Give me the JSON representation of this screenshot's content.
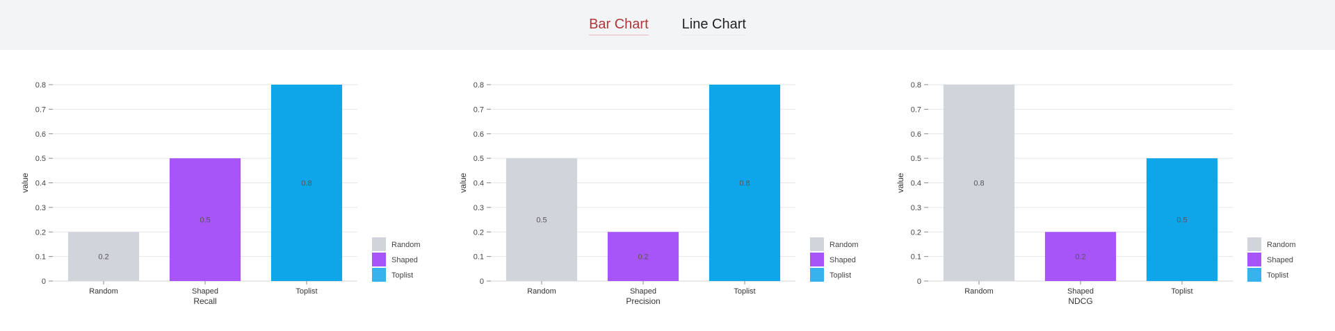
{
  "tabs": [
    {
      "label": "Bar Chart",
      "active": true
    },
    {
      "label": "Line Chart",
      "active": false
    }
  ],
  "chart_data": [
    {
      "type": "bar",
      "xlabel": "Recall",
      "ylabel": "value",
      "categories": [
        "Random",
        "Shaped",
        "Toplist"
      ],
      "values": [
        0.2,
        0.5,
        0.8
      ],
      "colors": [
        "#d1d5db",
        "#a855f7",
        "#0ea5e9"
      ],
      "ylim": [
        0,
        0.8
      ],
      "yticks": [
        "0",
        "0.1",
        "0.2",
        "0.3",
        "0.4",
        "0.5",
        "0.6",
        "0.7",
        "0.8"
      ],
      "grid": true,
      "legend": {
        "placement": "right-bottom",
        "entries": [
          "Random",
          "Shaped",
          "Toplist"
        ],
        "colors": [
          "#d1d5db",
          "#a855f7",
          "#38b2ec"
        ]
      }
    },
    {
      "type": "bar",
      "xlabel": "Precision",
      "ylabel": "value",
      "categories": [
        "Random",
        "Shaped",
        "Toplist"
      ],
      "values": [
        0.5,
        0.2,
        0.8
      ],
      "colors": [
        "#d1d5db",
        "#a855f7",
        "#0ea5e9"
      ],
      "ylim": [
        0,
        0.8
      ],
      "yticks": [
        "0",
        "0.1",
        "0.2",
        "0.3",
        "0.4",
        "0.5",
        "0.6",
        "0.7",
        "0.8"
      ],
      "grid": true,
      "legend": {
        "placement": "right-bottom",
        "entries": [
          "Random",
          "Shaped",
          "Toplist"
        ],
        "colors": [
          "#d1d5db",
          "#a855f7",
          "#38b2ec"
        ]
      }
    },
    {
      "type": "bar",
      "xlabel": "NDCG",
      "ylabel": "value",
      "categories": [
        "Random",
        "Shaped",
        "Toplist"
      ],
      "values": [
        0.8,
        0.2,
        0.5
      ],
      "colors": [
        "#d1d5db",
        "#a855f7",
        "#0ea5e9"
      ],
      "ylim": [
        0,
        0.8
      ],
      "yticks": [
        "0",
        "0.1",
        "0.2",
        "0.3",
        "0.4",
        "0.5",
        "0.6",
        "0.7",
        "0.8"
      ],
      "grid": true,
      "legend": {
        "placement": "right-bottom",
        "entries": [
          "Random",
          "Shaped",
          "Toplist"
        ],
        "colors": [
          "#d1d5db",
          "#a855f7",
          "#38b2ec"
        ]
      }
    }
  ]
}
